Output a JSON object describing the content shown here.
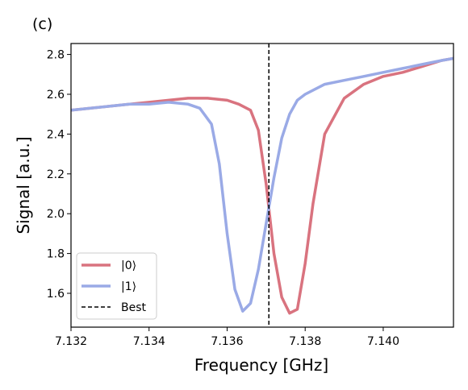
{
  "chart_data": {
    "type": "line",
    "panel_label": "(c)",
    "title": "",
    "xlabel": "Frequency [GHz]",
    "ylabel": "Signal [a.u.]",
    "xlim": [
      7.132,
      7.1418
    ],
    "ylim": [
      1.43,
      2.855
    ],
    "xticks": [
      7.132,
      7.134,
      7.136,
      7.138,
      7.14
    ],
    "xtick_labels": [
      "7.132",
      "7.134",
      "7.136",
      "7.138",
      "7.140"
    ],
    "yticks": [
      1.6,
      1.8,
      2.0,
      2.2,
      2.4,
      2.6,
      2.8
    ],
    "ytick_labels": [
      "1.6",
      "1.8",
      "2.0",
      "2.2",
      "2.4",
      "2.6",
      "2.8"
    ],
    "grid": false,
    "legend_position": "lower-left",
    "series": [
      {
        "name": "|0⟩",
        "color": "#d9737f",
        "x": [
          7.132,
          7.1325,
          7.133,
          7.1335,
          7.134,
          7.1345,
          7.135,
          7.1355,
          7.136,
          7.1363,
          7.1366,
          7.1368,
          7.137,
          7.1372,
          7.1374,
          7.1376,
          7.1378,
          7.138,
          7.1382,
          7.1385,
          7.139,
          7.1395,
          7.14,
          7.1405,
          7.141,
          7.1415,
          7.1418
        ],
        "y": [
          2.52,
          2.53,
          2.54,
          2.55,
          2.56,
          2.57,
          2.58,
          2.58,
          2.57,
          2.55,
          2.52,
          2.42,
          2.15,
          1.8,
          1.58,
          1.5,
          1.52,
          1.75,
          2.05,
          2.4,
          2.58,
          2.65,
          2.69,
          2.71,
          2.74,
          2.77,
          2.78
        ]
      },
      {
        "name": "|1⟩",
        "color": "#9aaae6",
        "x": [
          7.132,
          7.1325,
          7.133,
          7.1335,
          7.134,
          7.1345,
          7.135,
          7.1353,
          7.1356,
          7.1358,
          7.136,
          7.1362,
          7.1364,
          7.1366,
          7.1368,
          7.137,
          7.1372,
          7.1374,
          7.1376,
          7.1378,
          7.138,
          7.1385,
          7.139,
          7.1395,
          7.14,
          7.1405,
          7.141,
          7.1415,
          7.1418
        ],
        "y": [
          2.52,
          2.53,
          2.54,
          2.55,
          2.55,
          2.56,
          2.55,
          2.53,
          2.45,
          2.25,
          1.9,
          1.62,
          1.51,
          1.55,
          1.72,
          1.95,
          2.18,
          2.38,
          2.5,
          2.57,
          2.6,
          2.65,
          2.67,
          2.69,
          2.71,
          2.73,
          2.75,
          2.77,
          2.78
        ]
      }
    ],
    "reference_line": {
      "name": "Best",
      "x": 7.13707,
      "style": "dashed",
      "color": "#000000"
    }
  }
}
